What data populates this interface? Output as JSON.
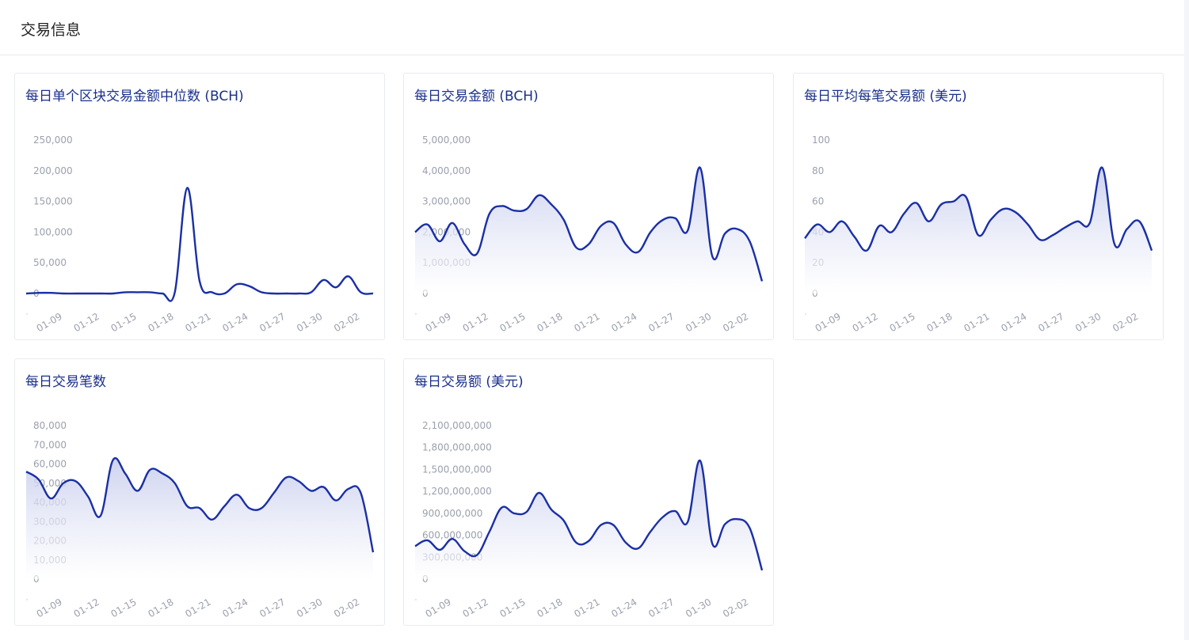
{
  "section": {
    "title": "交易信息"
  },
  "colors": {
    "line": "#1a2fa6",
    "fill_top": "#c5cbec",
    "fill_bottom": "#ffffff",
    "title": "#1a2f8c",
    "tick": "#9aa0ad"
  },
  "chart_data": [
    {
      "type": "line",
      "title": "每日单个区块交易金额中位数 (BCH)",
      "area": false,
      "yticks": [
        "250,000",
        "200,000",
        "150,000",
        "100,000",
        "50,000",
        "0"
      ],
      "ylim": [
        0,
        250000
      ],
      "xticks": [
        "01-09",
        "01-12",
        "01-15",
        "01-18",
        "01-21",
        "01-24",
        "01-27",
        "01-30",
        "02-02"
      ],
      "x": [
        "01-07",
        "01-08",
        "01-09",
        "01-10",
        "01-11",
        "01-12",
        "01-13",
        "01-14",
        "01-15",
        "01-16",
        "01-17",
        "01-18",
        "01-19",
        "01-20",
        "01-21",
        "01-22",
        "01-23",
        "01-24",
        "01-25",
        "01-26",
        "01-27",
        "01-28",
        "01-29",
        "01-30",
        "01-31",
        "02-01",
        "02-02",
        "02-03",
        "02-04"
      ],
      "values": [
        0,
        1000,
        1000,
        0,
        0,
        0,
        0,
        0,
        2000,
        2000,
        2000,
        0,
        2000,
        172000,
        20000,
        2000,
        0,
        15000,
        12000,
        2000,
        0,
        0,
        0,
        2000,
        22000,
        10000,
        28000,
        2000,
        0
      ]
    },
    {
      "type": "area",
      "title": "每日交易金额 (BCH)",
      "area": true,
      "yticks": [
        "5,000,000",
        "4,000,000",
        "3,000,000",
        "2,000,000",
        "1,000,000",
        "0"
      ],
      "ylim": [
        0,
        5000000
      ],
      "xticks": [
        "01-09",
        "01-12",
        "01-15",
        "01-18",
        "01-21",
        "01-24",
        "01-27",
        "01-30",
        "02-02"
      ],
      "x": [
        "01-07",
        "01-08",
        "01-09",
        "01-10",
        "01-11",
        "01-12",
        "01-13",
        "01-14",
        "01-15",
        "01-16",
        "01-17",
        "01-18",
        "01-19",
        "01-20",
        "01-21",
        "01-22",
        "01-23",
        "01-24",
        "01-25",
        "01-26",
        "01-27",
        "01-28",
        "01-29",
        "01-30",
        "01-31",
        "02-01",
        "02-02",
        "02-03",
        "02-04"
      ],
      "values": [
        2000000,
        2250000,
        1700000,
        2300000,
        1600000,
        1300000,
        2600000,
        2850000,
        2700000,
        2750000,
        3200000,
        2900000,
        2400000,
        1500000,
        1600000,
        2200000,
        2300000,
        1600000,
        1350000,
        2000000,
        2400000,
        2450000,
        2050000,
        4100000,
        1200000,
        1950000,
        2100000,
        1700000,
        400000
      ]
    },
    {
      "type": "area",
      "title": "每日平均每笔交易额 (美元)",
      "area": true,
      "yticks": [
        "100",
        "80",
        "60",
        "40",
        "20",
        "0"
      ],
      "ylim": [
        0,
        100
      ],
      "xticks": [
        "01-09",
        "01-12",
        "01-15",
        "01-18",
        "01-21",
        "01-24",
        "01-27",
        "01-30",
        "02-02"
      ],
      "x": [
        "01-07",
        "01-08",
        "01-09",
        "01-10",
        "01-11",
        "01-12",
        "01-13",
        "01-14",
        "01-15",
        "01-16",
        "01-17",
        "01-18",
        "01-19",
        "01-20",
        "01-21",
        "01-22",
        "01-23",
        "01-24",
        "01-25",
        "01-26",
        "01-27",
        "01-28",
        "01-29",
        "01-30",
        "01-31",
        "02-01",
        "02-02",
        "02-03",
        "02-04"
      ],
      "values": [
        36,
        45,
        40,
        47,
        37,
        28,
        44,
        40,
        52,
        59,
        47,
        58,
        60,
        63,
        38,
        48,
        55,
        53,
        45,
        35,
        38,
        43,
        47,
        46,
        82,
        32,
        42,
        47,
        28
      ]
    },
    {
      "type": "area",
      "title": "每日交易笔数",
      "area": true,
      "yticks": [
        "80,000",
        "70,000",
        "60,000",
        "50,000",
        "40,000",
        "30,000",
        "20,000",
        "10,000",
        "0"
      ],
      "ylim": [
        0,
        80000
      ],
      "xticks": [
        "01-09",
        "01-12",
        "01-15",
        "01-18",
        "01-21",
        "01-24",
        "01-27",
        "01-30",
        "02-02"
      ],
      "x": [
        "01-07",
        "01-08",
        "01-09",
        "01-10",
        "01-11",
        "01-12",
        "01-13",
        "01-14",
        "01-15",
        "01-16",
        "01-17",
        "01-18",
        "01-19",
        "01-20",
        "01-21",
        "01-22",
        "01-23",
        "01-24",
        "01-25",
        "01-26",
        "01-27",
        "01-28",
        "01-29",
        "01-30",
        "01-31",
        "02-01",
        "02-02",
        "02-03",
        "02-04"
      ],
      "values": [
        56000,
        52000,
        42000,
        50000,
        51000,
        43000,
        33000,
        62000,
        55000,
        46000,
        57000,
        55000,
        50000,
        38000,
        37000,
        31000,
        38000,
        44000,
        37000,
        37000,
        45000,
        53000,
        51000,
        46000,
        48000,
        41000,
        47000,
        45000,
        14000
      ]
    },
    {
      "type": "area",
      "title": "每日交易额 (美元)",
      "area": true,
      "yticks": [
        "2,100,000,000",
        "1,800,000,000",
        "1,500,000,000",
        "1,200,000,000",
        "900,000,000",
        "600,000,000",
        "300,000,000",
        "0"
      ],
      "ylim": [
        0,
        2100000000
      ],
      "xticks": [
        "01-09",
        "01-12",
        "01-15",
        "01-18",
        "01-21",
        "01-24",
        "01-27",
        "01-30",
        "02-02"
      ],
      "x": [
        "01-07",
        "01-08",
        "01-09",
        "01-10",
        "01-11",
        "01-12",
        "01-13",
        "01-14",
        "01-15",
        "01-16",
        "01-17",
        "01-18",
        "01-19",
        "01-20",
        "01-21",
        "01-22",
        "01-23",
        "01-24",
        "01-25",
        "01-26",
        "01-27",
        "01-28",
        "01-29",
        "01-30",
        "01-31",
        "02-01",
        "02-02",
        "02-03",
        "02-04"
      ],
      "values": [
        450000000,
        530000000,
        400000000,
        550000000,
        380000000,
        330000000,
        650000000,
        980000000,
        900000000,
        920000000,
        1180000000,
        950000000,
        800000000,
        500000000,
        520000000,
        740000000,
        740000000,
        500000000,
        420000000,
        650000000,
        850000000,
        930000000,
        780000000,
        1620000000,
        480000000,
        750000000,
        820000000,
        700000000,
        120000000
      ]
    }
  ]
}
